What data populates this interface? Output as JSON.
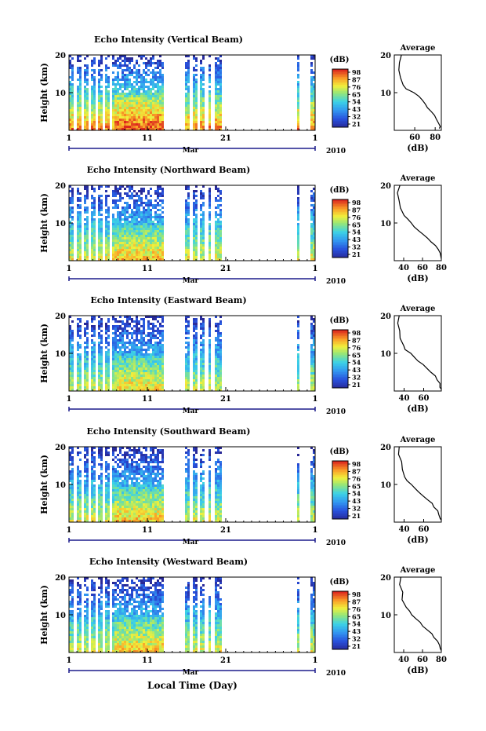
{
  "chart_data": [
    {
      "type": "heatmap",
      "title": "Echo Intensity (Vertical Beam)",
      "ylabel": "Height (km)",
      "y_ticks": [
        "20",
        "10"
      ],
      "x_ticks": [
        "1",
        "11",
        "21",
        "1"
      ],
      "xlabel": "Mar",
      "year": "2010",
      "colorbar": {
        "unit": "(dB)",
        "ticks": [
          "98",
          "87",
          "76",
          "65",
          "54",
          "43",
          "32",
          "21"
        ]
      },
      "profile": {
        "title": "Average",
        "xlabel": "(dB)",
        "x_ticks": [
          "60",
          "80"
        ],
        "xlim": [
          40,
          86
        ],
        "ylim": [
          0,
          20
        ],
        "y_ticks": [
          "20",
          "10"
        ],
        "points": [
          [
            47,
            20
          ],
          [
            45,
            18
          ],
          [
            44,
            16
          ],
          [
            46,
            14
          ],
          [
            48,
            12
          ],
          [
            52,
            11
          ],
          [
            60,
            10
          ],
          [
            64,
            9
          ],
          [
            67,
            8
          ],
          [
            70,
            7
          ],
          [
            73,
            6
          ],
          [
            76,
            5
          ],
          [
            79,
            4
          ],
          [
            82,
            3
          ],
          [
            84,
            2
          ],
          [
            85,
            1
          ],
          [
            84,
            0.5
          ]
        ]
      }
    },
    {
      "type": "heatmap",
      "title": "Echo Intensity (Northward Beam)",
      "ylabel": "Height (km)",
      "y_ticks": [
        "20",
        "10"
      ],
      "x_ticks": [
        "1",
        "11",
        "21",
        "1"
      ],
      "xlabel": "Mar",
      "year": "2010",
      "colorbar": {
        "unit": "(dB)",
        "ticks": [
          "98",
          "87",
          "76",
          "65",
          "54",
          "43",
          "32",
          "21"
        ]
      },
      "profile": {
        "title": "Average",
        "xlabel": "(dB)",
        "x_ticks": [
          "40",
          "60",
          "80"
        ],
        "xlim": [
          30,
          80
        ],
        "ylim": [
          0,
          20
        ],
        "y_ticks": [
          "20",
          "10"
        ],
        "points": [
          [
            36,
            20
          ],
          [
            34,
            18
          ],
          [
            35,
            16
          ],
          [
            37,
            14
          ],
          [
            40,
            12
          ],
          [
            44,
            11
          ],
          [
            48,
            10
          ],
          [
            52,
            9
          ],
          [
            56,
            8
          ],
          [
            61,
            7
          ],
          [
            65,
            6
          ],
          [
            69,
            5
          ],
          [
            73,
            4
          ],
          [
            76,
            3
          ],
          [
            78,
            2
          ],
          [
            79,
            1
          ],
          [
            80,
            0.5
          ]
        ]
      }
    },
    {
      "type": "heatmap",
      "title": "Echo Intensity (Eastward Beam)",
      "ylabel": "Height (km)",
      "y_ticks": [
        "20",
        "10"
      ],
      "x_ticks": [
        "1",
        "11",
        "21",
        "1"
      ],
      "xlabel": "Mar",
      "year": "2010",
      "colorbar": {
        "unit": "(dB)",
        "ticks": [
          "98",
          "87",
          "76",
          "65",
          "54",
          "43",
          "32",
          "21"
        ]
      },
      "profile": {
        "title": "Average",
        "xlabel": "(dB)",
        "x_ticks": [
          "40",
          "60"
        ],
        "xlim": [
          30,
          78
        ],
        "ylim": [
          0,
          20
        ],
        "y_ticks": [
          "20",
          "10"
        ],
        "points": [
          [
            35,
            20
          ],
          [
            33,
            18
          ],
          [
            35,
            16
          ],
          [
            36,
            14
          ],
          [
            39,
            12
          ],
          [
            42,
            11
          ],
          [
            46,
            10
          ],
          [
            51,
            9
          ],
          [
            55,
            8
          ],
          [
            60,
            7
          ],
          [
            64,
            6
          ],
          [
            68,
            5
          ],
          [
            71,
            4
          ],
          [
            74,
            3
          ],
          [
            76,
            2
          ],
          [
            77,
            1
          ],
          [
            78,
            0.5
          ]
        ]
      }
    },
    {
      "type": "heatmap",
      "title": "Echo Intensity (Southward Beam)",
      "ylabel": "Height (km)",
      "y_ticks": [
        "20",
        "10"
      ],
      "x_ticks": [
        "1",
        "11",
        "21",
        "1"
      ],
      "xlabel": "Mar",
      "year": "2010",
      "colorbar": {
        "unit": "(dB)",
        "ticks": [
          "98",
          "87",
          "76",
          "65",
          "54",
          "43",
          "32",
          "21"
        ]
      },
      "profile": {
        "title": "Average",
        "xlabel": "(dB)",
        "x_ticks": [
          "40",
          "60"
        ],
        "xlim": [
          30,
          78
        ],
        "ylim": [
          0,
          20
        ],
        "y_ticks": [
          "20",
          "10"
        ],
        "points": [
          [
            35,
            20
          ],
          [
            34,
            18
          ],
          [
            37,
            16
          ],
          [
            38,
            14
          ],
          [
            40,
            12
          ],
          [
            43,
            11
          ],
          [
            47,
            10
          ],
          [
            51,
            9
          ],
          [
            55,
            8
          ],
          [
            60,
            7
          ],
          [
            64,
            6
          ],
          [
            68,
            5
          ],
          [
            71,
            4
          ],
          [
            74,
            3
          ],
          [
            76,
            2
          ],
          [
            77,
            1
          ],
          [
            78,
            0.5
          ]
        ]
      }
    },
    {
      "type": "heatmap",
      "title": "Echo Intensity (Westward Beam)",
      "ylabel": "Height (km)",
      "y_ticks": [
        "20",
        "10"
      ],
      "x_ticks": [
        "1",
        "11",
        "21",
        "1"
      ],
      "xlabel": "Mar",
      "year": "2010",
      "colorbar": {
        "unit": "(dB)",
        "ticks": [
          "98",
          "87",
          "76",
          "65",
          "54",
          "43",
          "32",
          "21"
        ]
      },
      "profile": {
        "title": "Average",
        "xlabel": "(dB)",
        "x_ticks": [
          "40",
          "60",
          "80"
        ],
        "xlim": [
          30,
          80
        ],
        "ylim": [
          0,
          20
        ],
        "y_ticks": [
          "20",
          "10"
        ],
        "points": [
          [
            37,
            20
          ],
          [
            36,
            18
          ],
          [
            38,
            16
          ],
          [
            39,
            14
          ],
          [
            42,
            12
          ],
          [
            46,
            11
          ],
          [
            49,
            10
          ],
          [
            53,
            9
          ],
          [
            57,
            8
          ],
          [
            61,
            7
          ],
          [
            65,
            6
          ],
          [
            69,
            5
          ],
          [
            73,
            4
          ],
          [
            76,
            3
          ],
          [
            78,
            2
          ],
          [
            79,
            1
          ],
          [
            80,
            0.5
          ]
        ]
      }
    }
  ],
  "bottom_xlabel": "Local Time (Day)",
  "colors": {
    "bg": "#ffffff",
    "axis": "#000000",
    "axis_arrow": "#1c1c8c"
  }
}
